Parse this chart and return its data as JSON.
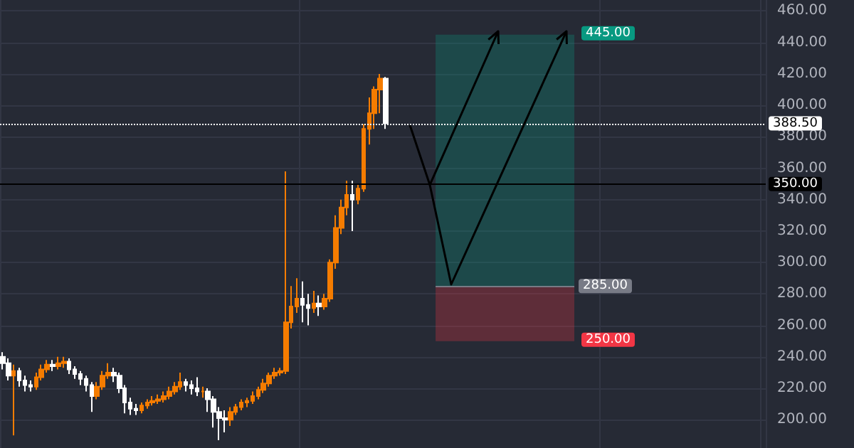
{
  "chart_data": {
    "type": "candlestick",
    "colors": [
      "#ffffff",
      "#ffffff",
      "#f57c00",
      "#ffffff",
      "#ffffff",
      "#ffffff",
      "#f57c00",
      "#f57c00",
      "#f57c00",
      "#ffffff",
      "#f57c00",
      "#f57c00",
      "#ffffff",
      "#ffffff",
      "#ffffff",
      "#ffffff",
      "#ffffff",
      "#f57c00",
      "#f57c00",
      "#f57c00",
      "#ffffff",
      "#ffffff",
      "#ffffff",
      "#ffffff",
      "#ffffff",
      "#f57c00",
      "#f57c00",
      "#f57c00",
      "#f57c00",
      "#f57c00",
      "#f57c00",
      "#f57c00",
      "#f57c00",
      "#ffffff",
      "#ffffff",
      "#ffffff",
      "#f57c00",
      "#ffffff",
      "#ffffff",
      "#ffffff",
      "#ffffff",
      "#f57c00",
      "#f57c00",
      "#f57c00",
      "#f57c00",
      "#f57c00",
      "#f57c00",
      "#f57c00",
      "#f57c00",
      "#f57c00",
      "#f57c00",
      "#f57c00",
      "#f57c00",
      "#f57c00",
      "#ffffff",
      "#ffffff",
      "#f57c00",
      "#ffffff",
      "#f57c00",
      "#f57c00",
      "#f57c00",
      "#f57c00",
      "#f57c00",
      "#ffffff",
      "#f57c00",
      "#f57c00",
      "#f57c00",
      "#f57c00",
      "#f57c00",
      "#ffffff",
      null,
      null,
      null,
      null,
      null,
      null,
      null,
      null,
      null,
      null,
      null,
      null,
      null,
      null,
      null,
      null,
      null,
      null,
      null,
      null,
      null,
      null,
      null,
      null,
      null,
      null,
      null,
      null,
      null,
      null,
      null,
      null,
      null,
      null,
      null,
      null,
      null,
      null,
      null,
      null,
      null,
      null,
      null,
      null,
      null,
      null,
      null,
      null,
      null,
      null,
      null,
      null,
      null,
      null,
      null,
      null,
      null,
      null,
      null,
      null,
      null,
      null,
      null,
      null,
      null,
      null,
      null,
      null
    ],
    "categories": [
      null,
      null,
      null,
      null,
      null,
      null,
      null,
      null,
      null,
      null,
      null,
      null,
      null,
      null,
      null,
      null,
      null,
      null,
      null,
      null,
      null,
      null,
      null,
      null,
      null,
      null,
      null,
      null,
      null,
      null,
      null,
      null,
      null,
      null,
      null,
      null,
      null,
      null,
      null,
      null,
      null,
      null,
      null,
      null,
      null,
      null,
      null,
      null,
      null,
      null,
      null,
      null,
      null,
      null,
      null,
      null,
      null,
      null,
      null,
      null,
      null,
      null,
      null,
      null,
      null,
      null,
      null,
      null,
      null,
      null,
      null,
      null,
      null,
      null,
      null,
      null,
      null,
      null,
      null,
      null,
      null,
      null,
      null,
      null,
      null,
      null,
      null,
      null,
      null,
      null,
      null,
      null,
      null,
      null,
      null,
      null,
      null,
      null,
      null,
      null,
      null,
      null,
      null,
      null,
      null,
      null,
      null,
      null,
      null,
      null,
      null,
      null,
      null,
      null,
      null,
      null,
      null,
      null,
      null,
      null,
      null,
      null,
      null,
      null,
      null,
      null,
      null,
      null,
      null,
      null,
      null,
      null,
      null,
      null,
      null,
      null,
      null,
      null
    ],
    "ohlc": [
      [
        240,
        243,
        232,
        236
      ],
      [
        236,
        239,
        225,
        228
      ],
      [
        228,
        235,
        190,
        231
      ],
      [
        231,
        233,
        221,
        225
      ],
      [
        225,
        228,
        218,
        222
      ],
      [
        222,
        225,
        218,
        221
      ],
      [
        221,
        230,
        219,
        227
      ],
      [
        227,
        235,
        225,
        232
      ],
      [
        232,
        238,
        230,
        235
      ],
      [
        235,
        238,
        231,
        234
      ],
      [
        234,
        240,
        232,
        236
      ],
      [
        236,
        240,
        233,
        237
      ],
      [
        237,
        239,
        229,
        232
      ],
      [
        232,
        234,
        226,
        229
      ],
      [
        229,
        231,
        222,
        226
      ],
      [
        226,
        228,
        218,
        222
      ],
      [
        222,
        224,
        205,
        215
      ],
      [
        215,
        224,
        213,
        221
      ],
      [
        221,
        231,
        219,
        228
      ],
      [
        228,
        236,
        226,
        230
      ],
      [
        230,
        233,
        224,
        228
      ],
      [
        228,
        230,
        217,
        220
      ],
      [
        220,
        222,
        204,
        211
      ],
      [
        211,
        214,
        203,
        207
      ],
      [
        207,
        210,
        203,
        206
      ],
      [
        206,
        211,
        204,
        209
      ],
      [
        209,
        213,
        207,
        211
      ],
      [
        211,
        215,
        209,
        212
      ],
      [
        212,
        216,
        210,
        213
      ],
      [
        213,
        218,
        211,
        215
      ],
      [
        215,
        221,
        213,
        218
      ],
      [
        218,
        224,
        216,
        221
      ],
      [
        221,
        230,
        219,
        224
      ],
      [
        224,
        226,
        218,
        222
      ],
      [
        222,
        225,
        216,
        220
      ],
      [
        220,
        227,
        215,
        218
      ],
      [
        218,
        221,
        214,
        218
      ],
      [
        218,
        220,
        205,
        213
      ],
      [
        213,
        215,
        195,
        205
      ],
      [
        205,
        208,
        187,
        201
      ],
      [
        201,
        206,
        192,
        200
      ],
      [
        200,
        208,
        196,
        205
      ],
      [
        205,
        210,
        203,
        208
      ],
      [
        208,
        213,
        206,
        211
      ],
      [
        211,
        214,
        208,
        212
      ],
      [
        212,
        218,
        210,
        215
      ],
      [
        215,
        221,
        213,
        219
      ],
      [
        219,
        226,
        217,
        223
      ],
      [
        223,
        230,
        221,
        228
      ],
      [
        228,
        233,
        226,
        230
      ],
      [
        230,
        233,
        228,
        231
      ],
      [
        231,
        358,
        229,
        262
      ],
      [
        262,
        285,
        258,
        272
      ],
      [
        272,
        290,
        268,
        277
      ],
      [
        277,
        288,
        262,
        273
      ],
      [
        273,
        280,
        260,
        271
      ],
      [
        271,
        282,
        268,
        274
      ],
      [
        274,
        279,
        266,
        272
      ],
      [
        272,
        280,
        270,
        277
      ],
      [
        277,
        302,
        275,
        300
      ],
      [
        300,
        330,
        296,
        322
      ],
      [
        322,
        340,
        318,
        335
      ],
      [
        335,
        352,
        330,
        343
      ],
      [
        343,
        352,
        320,
        340
      ],
      [
        340,
        350,
        337,
        347
      ],
      [
        347,
        388,
        345,
        385
      ],
      [
        385,
        405,
        375,
        395
      ],
      [
        395,
        412,
        385,
        410
      ],
      [
        410,
        420,
        395,
        417
      ],
      [
        417,
        418,
        385,
        388.5
      ],
      null,
      null,
      null,
      null,
      null,
      null,
      null,
      null,
      null,
      null,
      null,
      null,
      null,
      null,
      null,
      null,
      null,
      null,
      null,
      null,
      null,
      null,
      null,
      null,
      null,
      null,
      null,
      null,
      null,
      null,
      null,
      null,
      null,
      null,
      null,
      null,
      null,
      null,
      null,
      null,
      null,
      null,
      null,
      null,
      null,
      null,
      null,
      null,
      null,
      null,
      null,
      null,
      null,
      null,
      null,
      null,
      null,
      null,
      null,
      null,
      null,
      null,
      null,
      null,
      null,
      null,
      null,
      null
    ],
    "ylim": [
      182,
      467
    ],
    "yticks": [
      {
        "value": 200,
        "label": "200.00"
      },
      {
        "value": 220,
        "label": "220.00"
      },
      {
        "value": 240,
        "label": "240.00"
      },
      {
        "value": 260,
        "label": "260.00"
      },
      {
        "value": 280,
        "label": "280.00"
      },
      {
        "value": 300,
        "label": "300.00"
      },
      {
        "value": 320,
        "label": "320.00"
      },
      {
        "value": 340,
        "label": "340.00"
      },
      {
        "value": 360,
        "label": "360.00"
      },
      {
        "value": 380,
        "label": "380.00"
      },
      {
        "value": 400,
        "label": "400.00"
      },
      {
        "value": 420,
        "label": "420.00"
      },
      {
        "value": 440,
        "label": "440.00"
      },
      {
        "value": 460,
        "label": "460.00"
      }
    ],
    "ref_lines": [
      {
        "axis": "y",
        "value": 388.5,
        "label": "388.50",
        "color": "#ffffff",
        "line_style": "dotted"
      },
      {
        "axis": "y",
        "value": 350,
        "label": "350.00",
        "color": "#000000",
        "line_style": "solid"
      },
      {
        "axis": "y",
        "value": 285,
        "label": "285.00",
        "color": "#787b86",
        "line_style": "solid"
      }
    ],
    "bands": [
      {
        "axis": "y",
        "from": 285,
        "to": 445,
        "label": "445.00",
        "color": "#089981"
      },
      {
        "axis": "y",
        "from": 250,
        "to": 285,
        "label": "250.00",
        "color": "#f23645"
      }
    ],
    "grid": true
  }
}
